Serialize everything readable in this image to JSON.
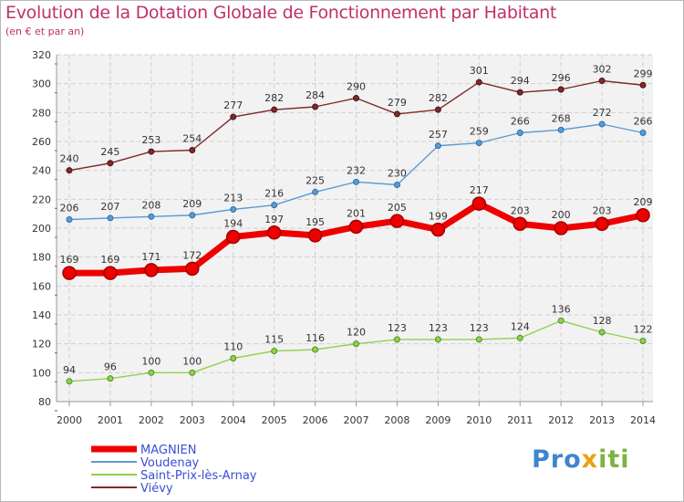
{
  "chart_data": {
    "type": "line",
    "title": "Evolution de la Dotation Globale de Fonctionnement par Habitant",
    "subtitle": "(en € et par an)",
    "xlabel": "",
    "ylabel": "",
    "x": [
      "2000",
      "2001",
      "2002",
      "2003",
      "2004",
      "2005",
      "2006",
      "2007",
      "2008",
      "2009",
      "2010",
      "2011",
      "2012",
      "2013",
      "2014"
    ],
    "ylim": [
      80,
      320
    ],
    "yticks": [
      "80",
      "100",
      "120",
      "140",
      "160",
      "180",
      "200",
      "220",
      "240",
      "260",
      "280",
      "300",
      "320"
    ],
    "grid": true,
    "legend_position": "bottom-left",
    "series": [
      {
        "name": "MAGNIEN",
        "color": "#ee0000",
        "values": [
          169,
          169,
          171,
          172,
          194,
          197,
          195,
          201,
          205,
          199,
          217,
          203,
          200,
          203,
          209
        ]
      },
      {
        "name": "Voudenay",
        "color": "#5b9bd5",
        "values": [
          206,
          207,
          208,
          209,
          213,
          216,
          225,
          232,
          230,
          257,
          259,
          266,
          268,
          272,
          266
        ]
      },
      {
        "name": "Saint-Prix-lès-Arnay",
        "color": "#92d050",
        "values": [
          94,
          96,
          100,
          100,
          110,
          115,
          116,
          120,
          123,
          123,
          123,
          124,
          136,
          128,
          122
        ]
      },
      {
        "name": "Viévy",
        "color": "#7f2a2a",
        "values": [
          240,
          245,
          253,
          254,
          277,
          282,
          284,
          290,
          279,
          282,
          301,
          294,
          296,
          302,
          299
        ]
      }
    ]
  },
  "logo": {
    "parts": [
      "Pro",
      "x",
      "iti"
    ]
  }
}
